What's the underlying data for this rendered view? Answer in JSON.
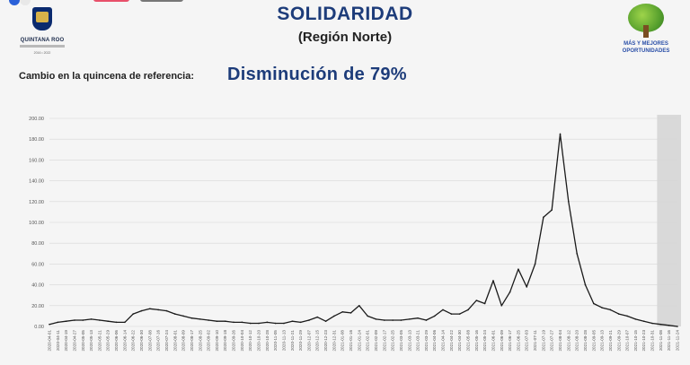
{
  "header": {
    "title": "SOLIDARIDAD",
    "subtitle": "(Región Norte)",
    "left_logo_text": "QUINTANA ROO",
    "left_logo_years": "2016 • 2022",
    "right_logo_line1": "MÁS Y MEJORES",
    "right_logo_line2": "OPORTUNIDADES"
  },
  "summary": {
    "label": "Cambio en la quincena de referencia:",
    "value": "Disminución de 79%"
  },
  "colors": {
    "title": "#1d3c7a",
    "line": "#1a1a1a",
    "grid": "#d6d6d6",
    "shade": "#d9d9d9"
  },
  "chart_data": {
    "type": "line",
    "title": "",
    "xlabel": "",
    "ylabel": "",
    "ylim": [
      0,
      200
    ],
    "yticks": [
      0,
      20,
      40,
      60,
      80,
      100,
      120,
      140,
      160,
      180,
      200
    ],
    "ytick_labels": [
      "0.00",
      "20.00",
      "40.00",
      "60.00",
      "80.00",
      "100.00",
      "120.00",
      "140.00",
      "160.00",
      "180.00",
      "200.00"
    ],
    "x_tick_labels": [
      "2020-04-01",
      "2020-04-11",
      "2020-04-19",
      "2020-04-27",
      "2020-05-05",
      "2020-05-13",
      "2020-05-21",
      "2020-05-29",
      "2020-06-06",
      "2020-06-14",
      "2020-06-22",
      "2020-06-30",
      "2020-07-08",
      "2020-07-16",
      "2020-07-24",
      "2020-08-01",
      "2020-08-09",
      "2020-08-17",
      "2020-08-25",
      "2020-09-02",
      "2020-09-10",
      "2020-09-18",
      "2020-09-26",
      "2020-10-04",
      "2020-10-12",
      "2020-10-20",
      "2020-10-28",
      "2020-11-05",
      "2020-11-13",
      "2020-11-21",
      "2020-11-29",
      "2020-12-07",
      "2020-12-15",
      "2020-12-23",
      "2020-12-31",
      "2021-01-08",
      "2021-01-16",
      "2021-01-24",
      "2021-02-01",
      "2021-02-09",
      "2021-02-17",
      "2021-02-25",
      "2021-03-05",
      "2021-03-13",
      "2021-03-21",
      "2021-03-29",
      "2021-04-06",
      "2021-04-14",
      "2021-04-22",
      "2021-04-30",
      "2021-05-08",
      "2021-05-16",
      "2021-05-24",
      "2021-06-01",
      "2021-06-09",
      "2021-06-17",
      "2021-06-25",
      "2021-07-03",
      "2021-07-11",
      "2021-07-19",
      "2021-07-27",
      "2021-08-04",
      "2021-08-12",
      "2021-08-20",
      "2021-08-28",
      "2021-09-05",
      "2021-09-13",
      "2021-09-21",
      "2021-09-29",
      "2021-10-07",
      "2021-10-15",
      "2021-10-23",
      "2021-10-31",
      "2021-11-08",
      "2021-11-16",
      "2021-11-24"
    ],
    "shaded_region": {
      "from": "2021-11-08",
      "to": "2021-11-24"
    },
    "series": [
      {
        "points": [
          [
            "2020-04-01",
            2
          ],
          [
            "2020-04-11",
            4
          ],
          [
            "2020-04-19",
            5
          ],
          [
            "2020-04-27",
            6
          ],
          [
            "2020-05-05",
            6
          ],
          [
            "2020-05-13",
            7
          ],
          [
            "2020-05-21",
            6
          ],
          [
            "2020-05-29",
            5
          ],
          [
            "2020-06-06",
            4
          ],
          [
            "2020-06-14",
            4
          ],
          [
            "2020-06-22",
            12
          ],
          [
            "2020-06-30",
            15
          ],
          [
            "2020-07-08",
            17
          ],
          [
            "2020-07-16",
            16
          ],
          [
            "2020-07-24",
            15
          ],
          [
            "2020-08-01",
            12
          ],
          [
            "2020-08-09",
            10
          ],
          [
            "2020-08-17",
            8
          ],
          [
            "2020-08-25",
            7
          ],
          [
            "2020-09-02",
            6
          ],
          [
            "2020-09-10",
            5
          ],
          [
            "2020-09-18",
            5
          ],
          [
            "2020-09-26",
            4
          ],
          [
            "2020-10-04",
            4
          ],
          [
            "2020-10-12",
            3
          ],
          [
            "2020-10-20",
            3
          ],
          [
            "2020-10-28",
            4
          ],
          [
            "2020-11-05",
            3
          ],
          [
            "2020-11-13",
            3
          ],
          [
            "2020-11-21",
            5
          ],
          [
            "2020-11-29",
            4
          ],
          [
            "2020-12-07",
            6
          ],
          [
            "2020-12-15",
            9
          ],
          [
            "2020-12-23",
            5
          ],
          [
            "2020-12-31",
            10
          ],
          [
            "2021-01-08",
            14
          ],
          [
            "2021-01-16",
            13
          ],
          [
            "2021-01-24",
            20
          ],
          [
            "2021-02-01",
            10
          ],
          [
            "2021-02-09",
            7
          ],
          [
            "2021-02-17",
            6
          ],
          [
            "2021-02-25",
            6
          ],
          [
            "2021-03-05",
            6
          ],
          [
            "2021-03-13",
            7
          ],
          [
            "2021-03-21",
            8
          ],
          [
            "2021-03-29",
            6
          ],
          [
            "2021-04-06",
            10
          ],
          [
            "2021-04-14",
            16
          ],
          [
            "2021-04-22",
            12
          ],
          [
            "2021-04-30",
            12
          ],
          [
            "2021-05-08",
            16
          ],
          [
            "2021-05-16",
            25
          ],
          [
            "2021-05-24",
            22
          ],
          [
            "2021-06-01",
            44
          ],
          [
            "2021-06-09",
            20
          ],
          [
            "2021-06-17",
            33
          ],
          [
            "2021-06-25",
            55
          ],
          [
            "2021-07-03",
            38
          ],
          [
            "2021-07-11",
            60
          ],
          [
            "2021-07-19",
            105
          ],
          [
            "2021-07-27",
            112
          ],
          [
            "2021-08-04",
            185
          ],
          [
            "2021-08-12",
            120
          ],
          [
            "2021-08-20",
            70
          ],
          [
            "2021-08-28",
            40
          ],
          [
            "2021-09-05",
            22
          ],
          [
            "2021-09-13",
            18
          ],
          [
            "2021-09-21",
            16
          ],
          [
            "2021-09-29",
            12
          ],
          [
            "2021-10-07",
            10
          ],
          [
            "2021-10-15",
            7
          ],
          [
            "2021-10-23",
            5
          ],
          [
            "2021-10-31",
            3
          ],
          [
            "2021-11-08",
            2
          ],
          [
            "2021-11-16",
            1
          ],
          [
            "2021-11-24",
            0
          ]
        ]
      }
    ],
    "grid": true,
    "legend": "none"
  }
}
